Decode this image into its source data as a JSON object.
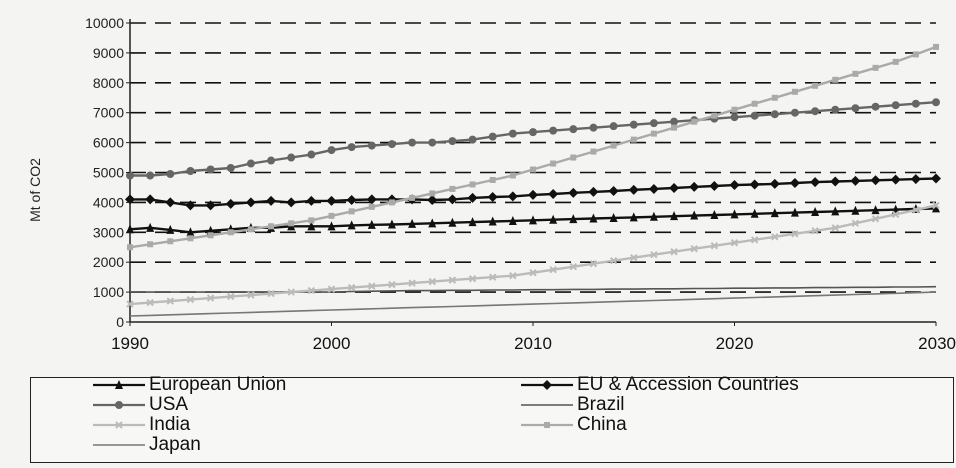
{
  "chart_data": {
    "type": "line",
    "title": "",
    "xlabel": "",
    "ylabel": "Mt of CO2",
    "xlim": [
      1990,
      2030
    ],
    "ylim": [
      0,
      10000
    ],
    "xticks": [
      "1990",
      "2000",
      "2010",
      "2020",
      "2030"
    ],
    "yticks": [
      "0",
      "1000",
      "2000",
      "3000",
      "4000",
      "5000",
      "6000",
      "7000",
      "8000",
      "9000",
      "10000"
    ],
    "grid": "horizontal dashed",
    "legend_position": "bottom",
    "x": [
      1990,
      1991,
      1992,
      1993,
      1994,
      1995,
      1996,
      1997,
      1998,
      1999,
      2000,
      2001,
      2002,
      2003,
      2004,
      2005,
      2006,
      2007,
      2008,
      2009,
      2010,
      2011,
      2012,
      2013,
      2014,
      2015,
      2016,
      2017,
      2018,
      2019,
      2020,
      2021,
      2022,
      2023,
      2024,
      2025,
      2026,
      2027,
      2028,
      2029,
      2030
    ],
    "series": [
      {
        "name": "European Union",
        "color": "#111111",
        "marker": "triangle",
        "values": [
          3100,
          3150,
          3080,
          3000,
          3050,
          3100,
          3150,
          3150,
          3200,
          3200,
          3200,
          3230,
          3250,
          3260,
          3280,
          3300,
          3320,
          3340,
          3360,
          3380,
          3400,
          3420,
          3440,
          3460,
          3480,
          3500,
          3520,
          3540,
          3560,
          3580,
          3600,
          3620,
          3640,
          3660,
          3680,
          3700,
          3720,
          3740,
          3760,
          3780,
          3800
        ]
      },
      {
        "name": "EU & Accession Countries",
        "color": "#111111",
        "marker": "diamond",
        "values": [
          4100,
          4100,
          4000,
          3900,
          3900,
          3950,
          4000,
          4050,
          4000,
          4050,
          4050,
          4080,
          4100,
          4100,
          4100,
          4080,
          4100,
          4150,
          4180,
          4200,
          4250,
          4280,
          4320,
          4350,
          4380,
          4420,
          4450,
          4480,
          4520,
          4550,
          4580,
          4600,
          4620,
          4650,
          4680,
          4700,
          4720,
          4740,
          4760,
          4780,
          4800
        ]
      },
      {
        "name": "USA",
        "color": "#666666",
        "marker": "circle",
        "values": [
          4900,
          4900,
          4950,
          5050,
          5100,
          5150,
          5300,
          5400,
          5500,
          5600,
          5750,
          5850,
          5900,
          5950,
          6000,
          6000,
          6050,
          6100,
          6200,
          6300,
          6350,
          6400,
          6450,
          6500,
          6550,
          6600,
          6650,
          6700,
          6750,
          6800,
          6850,
          6900,
          6950,
          7000,
          7050,
          7100,
          7150,
          7200,
          7250,
          7300,
          7350
        ]
      },
      {
        "name": "Brazil",
        "color": "#555555",
        "marker": "none",
        "values": [
          1000,
          1000,
          1000,
          1000,
          1000,
          1000,
          1000,
          1000,
          1000,
          1000,
          1000,
          1020,
          1030,
          1040,
          1050,
          1050,
          1060,
          1060,
          1070,
          1070,
          1080,
          1080,
          1090,
          1090,
          1100,
          1100,
          1110,
          1110,
          1120,
          1120,
          1130,
          1130,
          1140,
          1140,
          1150,
          1150,
          1160,
          1160,
          1170,
          1170,
          1180
        ]
      },
      {
        "name": "India",
        "color": "#bbbbbb",
        "marker": "x",
        "values": [
          600,
          650,
          700,
          750,
          800,
          850,
          900,
          950,
          1000,
          1050,
          1100,
          1150,
          1200,
          1250,
          1300,
          1350,
          1400,
          1450,
          1500,
          1550,
          1650,
          1750,
          1850,
          1950,
          2050,
          2150,
          2250,
          2350,
          2450,
          2550,
          2650,
          2750,
          2850,
          2950,
          3050,
          3150,
          3300,
          3450,
          3600,
          3750,
          3900
        ]
      },
      {
        "name": "China",
        "color": "#aaaaaa",
        "marker": "square",
        "values": [
          2500,
          2600,
          2700,
          2800,
          2900,
          3000,
          3100,
          3200,
          3300,
          3400,
          3550,
          3700,
          3850,
          4000,
          4150,
          4300,
          4450,
          4600,
          4750,
          4900,
          5100,
          5300,
          5500,
          5700,
          5900,
          6100,
          6300,
          6500,
          6700,
          6900,
          7100,
          7300,
          7500,
          7700,
          7900,
          8100,
          8300,
          8500,
          8700,
          8950,
          9200
        ]
      },
      {
        "name": "Japan",
        "color": "#777777",
        "marker": "none",
        "values": [
          200,
          220,
          240,
          260,
          280,
          300,
          320,
          340,
          360,
          380,
          400,
          420,
          440,
          460,
          480,
          500,
          520,
          540,
          560,
          580,
          600,
          620,
          640,
          660,
          680,
          700,
          720,
          740,
          760,
          780,
          800,
          820,
          840,
          860,
          880,
          900,
          920,
          940,
          960,
          980,
          1000
        ]
      }
    ]
  }
}
